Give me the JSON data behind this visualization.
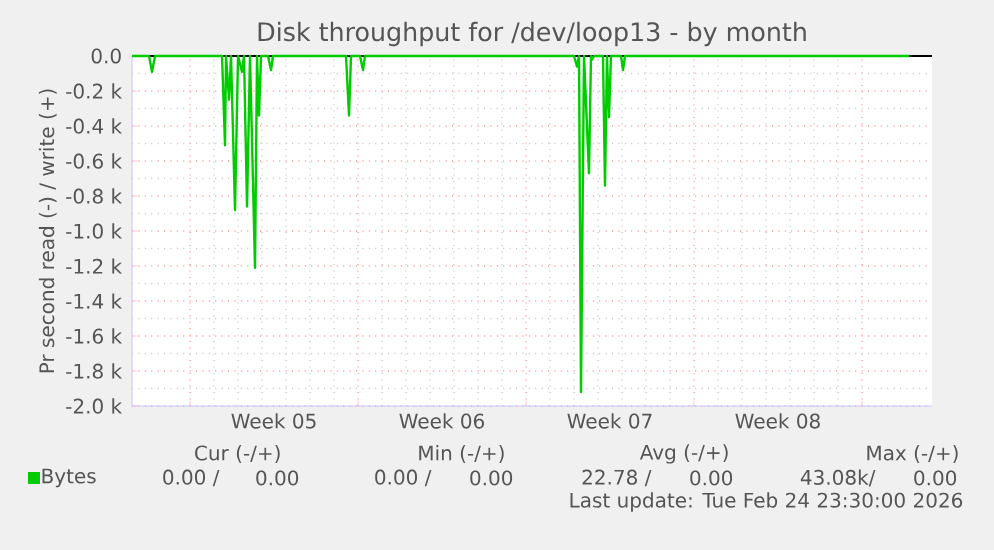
{
  "chart_data": {
    "type": "line",
    "title": "Disk throughput for /dev/loop13 - by month",
    "ylabel": "Pr second read (-) / write (+)",
    "x": [
      "2026-01-23T14:00",
      "2026-01-24T07:00",
      "2026-01-24T10:00",
      "2026-01-24T13:00",
      "2026-01-27T08:00",
      "2026-01-27T11:00",
      "2026-01-27T12:00",
      "2026-01-27T15:00",
      "2026-01-27T17:00",
      "2026-01-27T21:00",
      "2026-01-28T00:00",
      "2026-01-28T04:00",
      "2026-01-28T06:00",
      "2026-01-28T09:00",
      "2026-01-28T12:00",
      "2026-01-28T17:00",
      "2026-01-28T19:00",
      "2026-01-28T21:00",
      "2026-01-28T23:00",
      "2026-01-29T06:00",
      "2026-01-29T09:00",
      "2026-01-29T11:00",
      "2026-02-01T12:00",
      "2026-02-01T15:00",
      "2026-02-01T17:00",
      "2026-02-02T02:00",
      "2026-02-02T05:00",
      "2026-02-02T07:00",
      "2026-02-11T00:00",
      "2026-02-11T03:00",
      "2026-02-11T05:00",
      "2026-02-11T07:00",
      "2026-02-11T10:00",
      "2026-02-11T15:00",
      "2026-02-11T17:00",
      "2026-02-11T18:00",
      "2026-02-11T20:00",
      "2026-02-12T05:00",
      "2026-02-12T07:00",
      "2026-02-12T09:00",
      "2026-02-12T11:00",
      "2026-02-12T13:00",
      "2026-02-12T23:00",
      "2026-02-13T01:00",
      "2026-02-13T03:00",
      "2026-02-24T23:30"
    ],
    "series": [
      {
        "name": "Bytes",
        "color": "#00cc00",
        "values": [
          0,
          0,
          -90,
          0,
          0,
          -510,
          0,
          -250,
          0,
          -880,
          0,
          -90,
          0,
          -860,
          0,
          -1210,
          0,
          -340,
          0,
          0,
          -80,
          0,
          0,
          -340,
          0,
          0,
          -80,
          0,
          0,
          -60,
          0,
          -1920,
          0,
          -670,
          0,
          -20,
          0,
          0,
          -740,
          0,
          -350,
          0,
          0,
          -80,
          0,
          0
        ]
      }
    ],
    "xlim": [
      "2026-01-23T14:00",
      "2026-02-25T22:00"
    ],
    "xticks": [
      {
        "value": "2026-01-26",
        "label": null
      },
      {
        "value": "2026-02-02",
        "label": null
      },
      {
        "value": "2026-02-09",
        "label": null
      },
      {
        "value": "2026-02-16",
        "label": null
      },
      {
        "value": "2026-02-23",
        "label": null
      },
      {
        "value": "2026-01-29T12:00",
        "label": "Week 05"
      },
      {
        "value": "2026-02-05T12:00",
        "label": "Week 06"
      },
      {
        "value": "2026-02-12T12:00",
        "label": "Week 07"
      },
      {
        "value": "2026-02-19T12:00",
        "label": "Week 08"
      }
    ],
    "ylim": [
      -2000,
      0
    ],
    "yticks": [
      {
        "value": 0,
        "label": "0.0"
      },
      {
        "value": -200,
        "label": "-0.2 k"
      },
      {
        "value": -400,
        "label": "-0.4 k"
      },
      {
        "value": -600,
        "label": "-0.6 k"
      },
      {
        "value": -800,
        "label": "-0.8 k"
      },
      {
        "value": -1000,
        "label": "-1.0 k"
      },
      {
        "value": -1200,
        "label": "-1.2 k"
      },
      {
        "value": -1400,
        "label": "-1.4 k"
      },
      {
        "value": -1600,
        "label": "-1.6 k"
      },
      {
        "value": -1800,
        "label": "-1.8 k"
      },
      {
        "value": -2000,
        "label": "-2.0 k"
      }
    ],
    "grid": true,
    "legend": "bottom left",
    "marker": "none",
    "line_style": "solid",
    "ref_lines": [
      {
        "axis": "y",
        "value": 0,
        "color": "#000000"
      }
    ],
    "annotations": [
      "Cur (-/+)",
      "Min (-/+)",
      "Avg (-/+)",
      "Max (-/+)",
      "0.00 /",
      "0.00",
      "0.00 /",
      "0.00",
      "22.78 /",
      "0.00",
      "43.08k/",
      "0.00",
      "Last update: Tue Feb 24 23:30:00 2026"
    ]
  }
}
